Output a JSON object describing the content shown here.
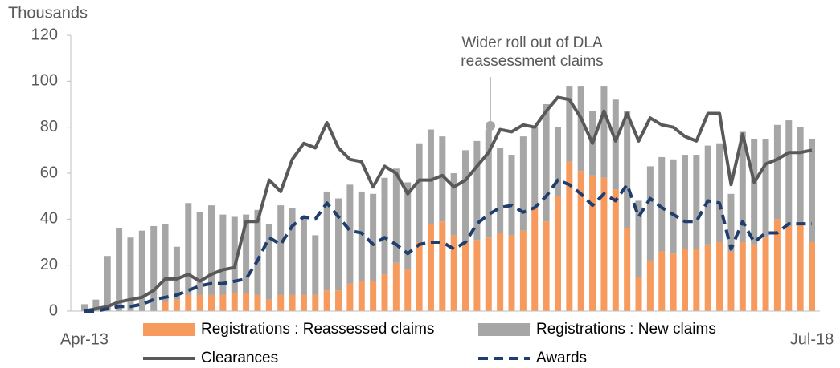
{
  "chart_data": {
    "type": "bar",
    "y_unit": "Thousands",
    "annotation": [
      "Wider roll out of DLA",
      "reassessment claims"
    ],
    "categories": [
      "Apr-13",
      null,
      null,
      null,
      null,
      null,
      null,
      null,
      null,
      null,
      null,
      null,
      null,
      null,
      null,
      null,
      null,
      null,
      null,
      null,
      null,
      null,
      null,
      null,
      null,
      null,
      null,
      null,
      null,
      null,
      null,
      null,
      null,
      null,
      null,
      null,
      null,
      null,
      null,
      null,
      null,
      null,
      null,
      null,
      null,
      null,
      null,
      null,
      null,
      null,
      null,
      null,
      null,
      null,
      null,
      null,
      null,
      null,
      null,
      null,
      null,
      null,
      null,
      "Jul-18"
    ],
    "ylim": [
      0,
      120
    ],
    "yticks": [
      0,
      20,
      40,
      60,
      80,
      100,
      120
    ],
    "grid": false,
    "legend": "bottom",
    "series": [
      {
        "name": "Registrations : Reassessed claims",
        "type": "bar",
        "color": "#f79a5e",
        "values": [
          0,
          0,
          0,
          0,
          0,
          0,
          0,
          4,
          5,
          7,
          7,
          7,
          7,
          8,
          8,
          7,
          5,
          7,
          7,
          7,
          7,
          9,
          9,
          12,
          13,
          13,
          16,
          21,
          18,
          30,
          38,
          39,
          33,
          30,
          31,
          32,
          34,
          33,
          35,
          45,
          39,
          50,
          65,
          61,
          59,
          58,
          53,
          36,
          15,
          22,
          26,
          25,
          27,
          27,
          29,
          30,
          26,
          30,
          29,
          32,
          40,
          37,
          38,
          30
        ]
      },
      {
        "name": "Registrations : New claims",
        "type": "bar",
        "color": "#a6a6a6",
        "values": [
          3,
          5,
          24,
          36,
          32,
          35,
          37,
          34,
          23,
          40,
          36,
          39,
          35,
          33,
          34,
          37,
          33,
          39,
          38,
          34,
          26,
          43,
          40,
          43,
          39,
          38,
          42,
          41,
          38,
          43,
          41,
          37,
          27,
          40,
          43,
          47,
          37,
          35,
          41,
          35,
          51,
          30,
          33,
          37,
          28,
          40,
          39,
          51,
          33,
          41,
          41,
          41,
          41,
          41,
          43,
          43,
          25,
          48,
          46,
          43,
          41,
          46,
          42,
          45
        ]
      },
      {
        "name": "Clearances",
        "type": "line",
        "color": "#595959",
        "dashed": false,
        "values": [
          0,
          1,
          2,
          4,
          5,
          6,
          9,
          14,
          14,
          16,
          13,
          16,
          18,
          19,
          39,
          39,
          57,
          52,
          66,
          73,
          71,
          82,
          71,
          66,
          65,
          54,
          63,
          60,
          51,
          57,
          57,
          59,
          54,
          57,
          63,
          69,
          79,
          78,
          81,
          80,
          87,
          93,
          92,
          84,
          73,
          87,
          74,
          86,
          74,
          84,
          81,
          80,
          76,
          74,
          86,
          86,
          55,
          77,
          56,
          64,
          66,
          69,
          69,
          70
        ]
      },
      {
        "name": "Awards",
        "type": "line",
        "color": "#1f3e6e",
        "dashed": true,
        "values": [
          0,
          0,
          1,
          2,
          2,
          3,
          5,
          6,
          7,
          9,
          11,
          12,
          12,
          13,
          14,
          22,
          32,
          29,
          37,
          41,
          40,
          47,
          41,
          35,
          34,
          29,
          32,
          29,
          25,
          29,
          30,
          30,
          27,
          30,
          38,
          42,
          45,
          46,
          43,
          45,
          50,
          57,
          55,
          51,
          46,
          51,
          48,
          55,
          41,
          49,
          45,
          42,
          39,
          39,
          48,
          47,
          27,
          39,
          30,
          34,
          34,
          38,
          38,
          38
        ]
      }
    ]
  }
}
